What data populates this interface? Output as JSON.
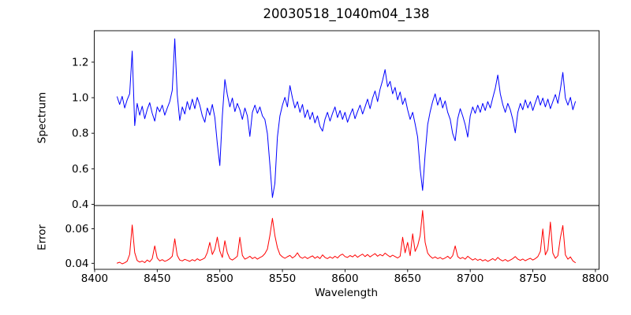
{
  "figure": {
    "title": "20030518_1040m04_138",
    "background": "#ffffff"
  },
  "chart_data": [
    {
      "type": "line",
      "title": "20030518_1040m04_138",
      "ylabel": "Spectrum",
      "grid": false,
      "legend": null,
      "xlim": [
        8399.7,
        8802.9
      ],
      "ylim": [
        0.393,
        1.377
      ],
      "yticks": [
        0.4,
        0.6,
        0.8,
        1.0,
        1.2
      ],
      "ytick_labels": [
        "0.4",
        "0.6",
        "0.8",
        "1.0",
        "1.2"
      ],
      "series": [
        {
          "name": "spectrum",
          "color": "#0000ff",
          "x_start": 8418,
          "x_step": 2,
          "values": [
            1.005,
            0.962,
            1.008,
            0.942,
            0.988,
            1.022,
            1.262,
            0.843,
            0.968,
            0.902,
            0.952,
            0.882,
            0.933,
            0.972,
            0.912,
            0.868,
            0.948,
            0.921,
            0.958,
            0.902,
            0.941,
            0.978,
            1.042,
            1.332,
            1.018,
            0.872,
            0.948,
            0.908,
            0.978,
            0.932,
            0.992,
            0.938,
            1.002,
            0.958,
            0.898,
            0.862,
            0.942,
            0.902,
            0.962,
            0.888,
            0.742,
            0.618,
            0.898,
            1.102,
            1.018,
            0.948,
            0.998,
            0.922,
            0.968,
            0.932,
            0.878,
            0.942,
            0.898,
            0.782,
            0.918,
            0.958,
            0.912,
            0.948,
            0.898,
            0.878,
            0.798,
            0.622,
            0.438,
            0.518,
            0.778,
            0.898,
            0.958,
            1.002,
            0.948,
            1.068,
            0.998,
            0.942,
            0.978,
            0.918,
            0.962,
            0.888,
            0.932,
            0.878,
            0.918,
            0.858,
            0.898,
            0.838,
            0.812,
            0.878,
            0.918,
            0.868,
            0.912,
            0.948,
            0.888,
            0.928,
            0.878,
            0.918,
            0.862,
            0.902,
            0.938,
            0.882,
            0.922,
            0.958,
            0.908,
            0.948,
            0.992,
            0.938,
            0.998,
            1.038,
            0.978,
            1.048,
            1.098,
            1.158,
            1.062,
            1.092,
            1.022,
            1.058,
            0.988,
            1.032,
            0.962,
            0.998,
            0.932,
            0.878,
            0.918,
            0.852,
            0.778,
            0.598,
            0.478,
            0.682,
            0.848,
            0.922,
            0.978,
            1.022,
            0.958,
            1.002,
            0.942,
            0.982,
            0.918,
            0.878,
            0.798,
            0.758,
            0.882,
            0.938,
            0.898,
            0.848,
            0.778,
            0.898,
            0.948,
            0.912,
            0.958,
            0.918,
            0.968,
            0.928,
            0.978,
            0.942,
            0.998,
            1.052,
            1.128,
            1.022,
            0.962,
            0.918,
            0.968,
            0.932,
            0.878,
            0.802,
            0.918,
            0.968,
            0.932,
            0.988,
            0.942,
            0.978,
            0.928,
            0.972,
            1.012,
            0.958,
            0.998,
            0.948,
            0.992,
            0.938,
            0.978,
            1.018,
            0.968,
            1.048,
            1.142,
            0.998,
            0.958,
            1.002,
            0.932,
            0.978
          ]
        }
      ]
    },
    {
      "type": "line",
      "ylabel": "Error",
      "xlabel": "Wavelength",
      "grid": false,
      "legend": null,
      "xlim": [
        8399.7,
        8802.9
      ],
      "ylim": [
        0.0365,
        0.0735
      ],
      "yticks": [
        0.04,
        0.06
      ],
      "ytick_labels": [
        "0.04",
        "0.06"
      ],
      "xticks": [
        8400,
        8450,
        8500,
        8550,
        8600,
        8650,
        8700,
        8750,
        8800
      ],
      "xtick_labels": [
        "8400",
        "8450",
        "8500",
        "8550",
        "8600",
        "8650",
        "8700",
        "8750",
        "8800"
      ],
      "series": [
        {
          "name": "error",
          "color": "#ff0000",
          "x_start": 8418,
          "x_step": 2,
          "values": [
            0.0401,
            0.0406,
            0.0397,
            0.0403,
            0.0412,
            0.0452,
            0.0622,
            0.0462,
            0.0416,
            0.0407,
            0.0413,
            0.0404,
            0.0419,
            0.0409,
            0.0427,
            0.0501,
            0.0431,
            0.0414,
            0.0421,
            0.0411,
            0.0417,
            0.0426,
            0.0441,
            0.0542,
            0.0446,
            0.0419,
            0.0414,
            0.0423,
            0.0417,
            0.0411,
            0.0421,
            0.0414,
            0.0426,
            0.0417,
            0.0423,
            0.0431,
            0.0462,
            0.0521,
            0.0451,
            0.0482,
            0.0552,
            0.0471,
            0.0434,
            0.0531,
            0.0461,
            0.0427,
            0.0419,
            0.0429,
            0.0441,
            0.0551,
            0.0446,
            0.0424,
            0.0431,
            0.0441,
            0.0427,
            0.0436,
            0.0424,
            0.0433,
            0.0441,
            0.0456,
            0.0482,
            0.0562,
            0.0661,
            0.0561,
            0.0491,
            0.0451,
            0.0437,
            0.0429,
            0.0438,
            0.0446,
            0.0431,
            0.0441,
            0.0461,
            0.0437,
            0.0429,
            0.0438,
            0.0427,
            0.0436,
            0.0443,
            0.0429,
            0.0439,
            0.0427,
            0.0449,
            0.0434,
            0.0427,
            0.0437,
            0.0429,
            0.0441,
            0.0431,
            0.0446,
            0.0453,
            0.0439,
            0.0434,
            0.0445,
            0.0437,
            0.0449,
            0.0435,
            0.0445,
            0.0453,
            0.0439,
            0.0451,
            0.0437,
            0.0447,
            0.0456,
            0.0441,
            0.0451,
            0.0443,
            0.0459,
            0.0447,
            0.0437,
            0.0447,
            0.0439,
            0.0431,
            0.0441,
            0.0551,
            0.0461,
            0.0521,
            0.0444,
            0.0571,
            0.0469,
            0.0501,
            0.0561,
            0.0706,
            0.0521,
            0.0459,
            0.0441,
            0.0429,
            0.0437,
            0.0427,
            0.0434,
            0.0424,
            0.0431,
            0.0441,
            0.0427,
            0.0444,
            0.0501,
            0.0439,
            0.0427,
            0.0434,
            0.0424,
            0.0441,
            0.0429,
            0.0419,
            0.0427,
            0.0417,
            0.0424,
            0.0414,
            0.0421,
            0.0411,
            0.0419,
            0.0427,
            0.0417,
            0.0434,
            0.0421,
            0.0414,
            0.0422,
            0.0412,
            0.0419,
            0.0427,
            0.0439,
            0.0424,
            0.0417,
            0.0425,
            0.0415,
            0.0423,
            0.0429,
            0.0419,
            0.0427,
            0.0439,
            0.0469,
            0.0599,
            0.0449,
            0.0479,
            0.0639,
            0.0459,
            0.0429,
            0.0444,
            0.0549,
            0.0619,
            0.0449,
            0.0424,
            0.0437,
            0.0414,
            0.0404
          ]
        }
      ]
    }
  ]
}
